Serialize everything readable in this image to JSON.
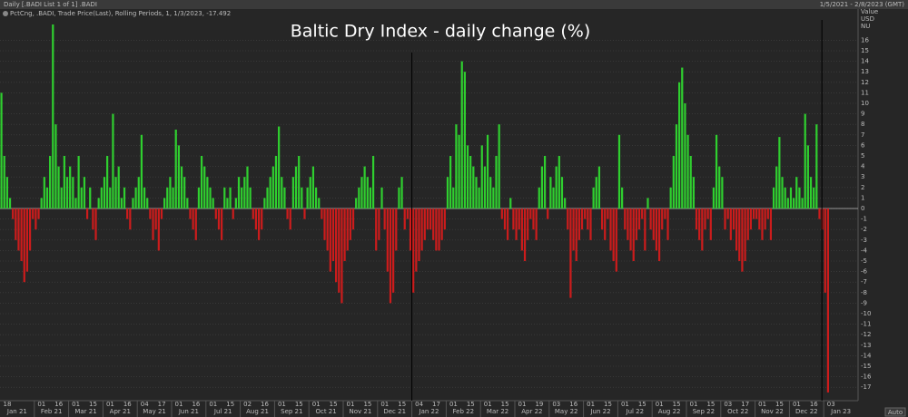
{
  "header": {
    "title": "Daily [.BADI List 1 of 1] .BADI",
    "range": "1/5/2021 - 2/8/2023 (GMT)"
  },
  "chart_data": {
    "type": "bar",
    "title": "Baltic Dry Index - daily change (%)",
    "legend": "PctCng, .BADI, Trade Price(Last), Rolling Periods, 1, 1/3/2023, -17.492",
    "axis_header": [
      "Value",
      "USD",
      "NU"
    ],
    "auto_label": "Auto",
    "colors": {
      "positive": "#2fcf2f",
      "negative": "#cc1c1c"
    },
    "grid": true,
    "ylim": [
      -18,
      17
    ],
    "yticks": [
      16,
      15,
      14,
      13,
      12,
      11,
      10,
      9,
      8,
      7,
      6,
      5,
      4,
      3,
      2,
      1,
      0,
      -1,
      -2,
      -3,
      -4,
      -5,
      -6,
      -7,
      -8,
      -9,
      -10,
      -11,
      -12,
      -13,
      -14,
      -15,
      -16,
      -17
    ],
    "months": [
      {
        "label": "Jan 21",
        "days": [
          "18"
        ],
        "values": [
          11,
          5,
          3,
          1,
          -1,
          -3,
          -4,
          -5,
          -7,
          -6,
          -4,
          -1
        ]
      },
      {
        "label": "Feb 21",
        "days": [
          "01",
          "16"
        ],
        "values": [
          -2,
          -1,
          1,
          3,
          2,
          5,
          17.5,
          8,
          4,
          2,
          5,
          3
        ]
      },
      {
        "label": "Mar 21",
        "days": [
          "01",
          "15"
        ],
        "values": [
          4,
          3,
          1,
          5,
          2,
          3,
          -1,
          2,
          -2,
          -3,
          1,
          2
        ]
      },
      {
        "label": "Apr 21",
        "days": [
          "01",
          "16"
        ],
        "values": [
          3,
          5,
          2,
          9,
          3,
          4,
          1,
          2,
          -1,
          -2,
          1,
          2
        ]
      },
      {
        "label": "May 21",
        "days": [
          "04",
          "17"
        ],
        "values": [
          3,
          7,
          2,
          1,
          -1,
          -3,
          -2,
          -4,
          -1,
          1,
          2,
          3
        ]
      },
      {
        "label": "Jun 21",
        "days": [
          "01",
          "16"
        ],
        "values": [
          2,
          7.5,
          6,
          4,
          3,
          1,
          -1,
          -2,
          -3,
          2,
          5,
          4
        ]
      },
      {
        "label": "Jul 21",
        "days": [
          "01",
          "15"
        ],
        "values": [
          3,
          2,
          1,
          -1,
          -2,
          -3,
          2,
          1,
          2,
          -1,
          1,
          3
        ]
      },
      {
        "label": "Aug 21",
        "days": [
          "02",
          "16"
        ],
        "values": [
          2,
          3,
          4,
          2,
          -1,
          -2,
          -3,
          -2,
          1,
          2,
          3,
          4
        ]
      },
      {
        "label": "Sep 21",
        "days": [
          "01",
          "15"
        ],
        "values": [
          5,
          7.8,
          3,
          2,
          -1,
          -2,
          3,
          4,
          5,
          2,
          -1,
          2
        ]
      },
      {
        "label": "Oct 21",
        "days": [
          "01",
          "15"
        ],
        "values": [
          3,
          4,
          2,
          1,
          -1,
          -3,
          -4,
          -6,
          -5,
          -7,
          -8,
          -9
        ]
      },
      {
        "label": "Nov 21",
        "days": [
          "01",
          "15"
        ],
        "values": [
          -5,
          -4,
          -3,
          -2,
          1,
          2,
          3,
          4,
          3,
          2,
          5,
          -4
        ]
      },
      {
        "label": "Dec 21",
        "days": [
          "01",
          "15"
        ],
        "values": [
          -3,
          2,
          -2,
          -6,
          -9,
          -8,
          -4,
          2,
          3,
          -2,
          -1,
          -4
        ]
      },
      {
        "label": "Jan 22",
        "days": [
          "04",
          "17"
        ],
        "values": [
          -8,
          -6,
          -5,
          -4,
          -3,
          -2,
          -2,
          -3,
          -4,
          -4,
          -3,
          -2
        ]
      },
      {
        "label": "Feb 22",
        "days": [
          "01",
          "15"
        ],
        "values": [
          3,
          5,
          2,
          8,
          7,
          14,
          13,
          6,
          5,
          4,
          3,
          2
        ]
      },
      {
        "label": "Mar 22",
        "days": [
          "01",
          "15"
        ],
        "values": [
          6,
          4,
          7,
          3,
          2,
          5,
          8,
          -1,
          -2,
          -3,
          1,
          -2
        ]
      },
      {
        "label": "Apr 22",
        "days": [
          "01",
          "19"
        ],
        "values": [
          -3,
          -2,
          -4,
          -5,
          -3,
          -1,
          -2,
          -3,
          2,
          4,
          5,
          -1
        ]
      },
      {
        "label": "May 22",
        "days": [
          "03",
          "16"
        ],
        "values": [
          3,
          2,
          4,
          5,
          3,
          1,
          -2,
          -8.5,
          -4,
          -5,
          -3,
          -2
        ]
      },
      {
        "label": "Jun 22",
        "days": [
          "01",
          "15"
        ],
        "values": [
          -1,
          -2,
          -3,
          2,
          3,
          4,
          -2,
          -3,
          -1,
          -4,
          -5,
          -6
        ]
      },
      {
        "label": "Jul 22",
        "days": [
          "01",
          "15"
        ],
        "values": [
          7,
          2,
          -2,
          -3,
          -4,
          -5,
          -3,
          -2,
          -1,
          -4,
          1,
          -2
        ]
      },
      {
        "label": "Aug 22",
        "days": [
          "01",
          "15"
        ],
        "values": [
          -3,
          -4,
          -5,
          -2,
          -1,
          -3,
          2,
          5,
          8,
          12,
          13.4,
          10
        ]
      },
      {
        "label": "Sep 22",
        "days": [
          "01",
          "15"
        ],
        "values": [
          7,
          5,
          3,
          -2,
          -3,
          -4,
          -2,
          -1,
          -3,
          2,
          7,
          4
        ]
      },
      {
        "label": "Oct 22",
        "days": [
          "03",
          "17"
        ],
        "values": [
          3,
          -2,
          -1,
          -3,
          -2,
          -4,
          -5,
          -6,
          -5,
          -3,
          -2,
          -1
        ]
      },
      {
        "label": "Nov 22",
        "days": [
          "01",
          "15"
        ],
        "values": [
          -1,
          -2,
          -3,
          -2,
          -1,
          -3,
          2,
          4,
          6.8,
          3,
          2,
          1
        ]
      },
      {
        "label": "Dec 22",
        "days": [
          "01",
          "16"
        ],
        "values": [
          2,
          1,
          3,
          2,
          1,
          9,
          6,
          3,
          2,
          8,
          -1,
          -2
        ]
      },
      {
        "label": "Jan 23",
        "days": [
          "03"
        ],
        "values": [
          -8,
          -17.492
        ]
      }
    ]
  }
}
